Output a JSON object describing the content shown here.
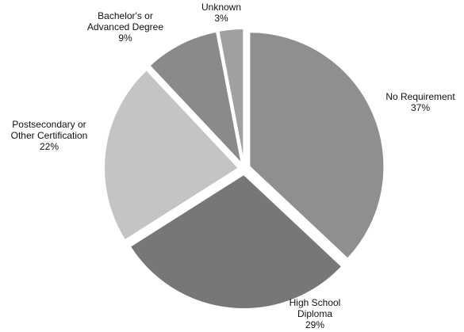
{
  "chart_data": {
    "type": "pie",
    "categories": [
      "No Requirement",
      "High School Diploma",
      "Postsecondary or Other Certification",
      "Bachelor's or Advanced Degree",
      "Unknown"
    ],
    "values": [
      37,
      29,
      22,
      9,
      3
    ],
    "value_suffix": "%",
    "labels": [
      [
        "No Requirement",
        "37%"
      ],
      [
        "High School",
        "Diploma",
        "29%"
      ],
      [
        "Postsecondary or",
        "Other Certification",
        "22%"
      ],
      [
        "Bachelor's or",
        "Advanced Degree",
        "9%"
      ],
      [
        "Unknown",
        "3%"
      ]
    ],
    "colors": [
      "#8f8f8f",
      "#777777",
      "#c4c4c4",
      "#8a8a8a",
      "#a0a0a0"
    ],
    "start_angle_deg": 0,
    "direction": "clockwise",
    "exploded": true
  }
}
